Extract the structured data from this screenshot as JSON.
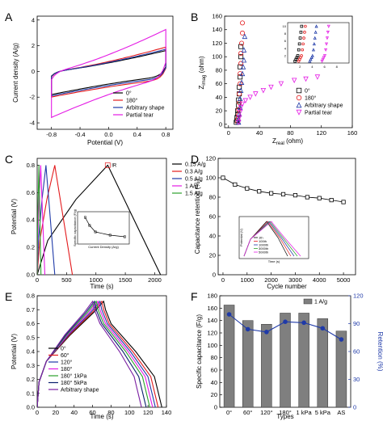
{
  "chart_data": [
    {
      "panel": "A",
      "type": "line",
      "xlabel": "Potential (V)",
      "ylabel": "Current density (A/g)",
      "xlim": [
        -1.0,
        0.9
      ],
      "ylim": [
        -4.5,
        4.3
      ],
      "xticks": [
        -0.8,
        -0.4,
        0.0,
        0.4,
        0.8
      ],
      "xtick_labels": [
        "-0.8",
        "-0.4",
        "0.0",
        "0.4",
        "0.8"
      ],
      "yticks": [
        -4,
        -2,
        0,
        2,
        4
      ],
      "ytick_labels": [
        "-4",
        "-2",
        "0",
        "2",
        "4"
      ],
      "legend_position": "bottom-right",
      "series": [
        {
          "name": "0°",
          "color": "#000000",
          "upper_ends": [
            -0.5,
            1.8
          ],
          "lower_ends": [
            -1.7,
            0.6
          ],
          "corner": 0.6
        },
        {
          "name": "180°",
          "color": "#e31a1c",
          "upper_ends": [
            -0.6,
            2.1
          ],
          "lower_ends": [
            -1.8,
            0.4
          ],
          "corner": 0.7
        },
        {
          "name": "Arbitrary shape",
          "color": "#1f3aa8",
          "upper_ends": [
            -0.55,
            1.9
          ],
          "lower_ends": [
            -1.75,
            0.5
          ],
          "corner": 0.65
        },
        {
          "name": "Partial tear",
          "color": "#e41ae4",
          "upper_ends": [
            -0.9,
            3.8
          ],
          "lower_ends": [
            -3.8,
            1.2
          ],
          "corner": 1.0
        }
      ]
    },
    {
      "panel": "B",
      "type": "scatter",
      "xlabel": "Z",
      "xlabel_sub": "real",
      "xlabel_unit": " (ohm)",
      "ylabel": "Z",
      "ylabel_sub": "imag",
      "ylabel_unit": " (ohm)",
      "xlim": [
        -5,
        160
      ],
      "ylim": [
        -5,
        160
      ],
      "xticks": [
        0,
        40,
        80,
        120,
        160
      ],
      "xtick_labels": [
        "0",
        "40",
        "80",
        "120",
        "160"
      ],
      "yticks": [
        0,
        20,
        40,
        60,
        80,
        100,
        120,
        140,
        160
      ],
      "ytick_labels": [
        "0",
        "20",
        "40",
        "60",
        "80",
        "100",
        "120",
        "140",
        "160"
      ],
      "legend_position": "bottom-right",
      "series": [
        {
          "name": "0°",
          "color": "#000000",
          "marker": "square",
          "points": [
            [
              10,
              3
            ],
            [
              11,
              6
            ],
            [
              11,
              10
            ],
            [
              12,
              15
            ],
            [
              12,
              20
            ],
            [
              13,
              28
            ],
            [
              13,
              36
            ],
            [
              14,
              45
            ],
            [
              14,
              55
            ],
            [
              15,
              70
            ],
            [
              15,
              85
            ],
            [
              16,
              100
            ],
            [
              16,
              115
            ]
          ]
        },
        {
          "name": "180°",
          "color": "#e31a1c",
          "marker": "circle",
          "points": [
            [
              12,
              3
            ],
            [
              12,
              8
            ],
            [
              13,
              14
            ],
            [
              13,
              22
            ],
            [
              14,
              32
            ],
            [
              14,
              45
            ],
            [
              15,
              60
            ],
            [
              15,
              75
            ],
            [
              16,
              90
            ],
            [
              16,
              105
            ],
            [
              17,
              120
            ],
            [
              18,
              135
            ],
            [
              18,
              150
            ]
          ]
        },
        {
          "name": "Arbitrary shape",
          "color": "#1f3aa8",
          "marker": "triangle-up",
          "points": [
            [
              13,
              3
            ],
            [
              13,
              8
            ],
            [
              14,
              15
            ],
            [
              15,
              25
            ],
            [
              15,
              38
            ],
            [
              16,
              50
            ],
            [
              17,
              62
            ],
            [
              18,
              75
            ],
            [
              19,
              85
            ],
            [
              20,
              95
            ],
            [
              20,
              110
            ],
            [
              21,
              130
            ]
          ]
        },
        {
          "name": "Partial tear",
          "color": "#e41ae4",
          "marker": "triangle-down",
          "points": [
            [
              13,
              3
            ],
            [
              14,
              10
            ],
            [
              15,
              18
            ],
            [
              16,
              25
            ],
            [
              18,
              30
            ],
            [
              22,
              35
            ],
            [
              28,
              40
            ],
            [
              35,
              45
            ],
            [
              45,
              50
            ],
            [
              55,
              55
            ],
            [
              68,
              60
            ],
            [
              85,
              65
            ],
            [
              100,
              67
            ],
            [
              115,
              70
            ]
          ]
        }
      ],
      "inset": {
        "xlim": [
          0,
          10
        ],
        "ylim": [
          0,
          11
        ],
        "xticks": [
          2,
          4,
          6,
          8
        ],
        "xtick_labels": [
          "2",
          "4",
          "6",
          "8"
        ],
        "yticks": [
          2,
          4,
          6,
          8,
          10
        ],
        "ytick_labels": [
          "2",
          "4",
          "6",
          "8",
          "10"
        ]
      }
    },
    {
      "panel": "C",
      "type": "line",
      "xlabel": "Time (s)",
      "ylabel": "Potential (V)",
      "xlim": [
        0,
        2200
      ],
      "ylim": [
        0,
        0.85
      ],
      "xticks": [
        0,
        500,
        1000,
        1500,
        2000
      ],
      "xtick_labels": [
        "0",
        "500",
        "1000",
        "1500",
        "2000"
      ],
      "yticks": [
        0.0,
        0.2,
        0.4,
        0.6,
        0.8
      ],
      "ytick_labels": [
        "0.0",
        "0.2",
        "0.4",
        "0.6",
        "0.8"
      ],
      "legend_position": "top-right",
      "annotation": "IR",
      "series": [
        {
          "name": "0.15 A/g",
          "color": "#000000",
          "peak_time": 1200,
          "end_time": 2100
        },
        {
          "name": "0.3 A/g",
          "color": "#e31a1c",
          "peak_time": 300,
          "end_time": 600
        },
        {
          "name": "0.5 A/g",
          "color": "#1f3aa8",
          "peak_time": 150,
          "end_time": 300
        },
        {
          "name": "1 A/g",
          "color": "#e41ae4",
          "peak_time": 60,
          "end_time": 130
        },
        {
          "name": "1.5 A/g",
          "color": "#2ca02c",
          "peak_time": 30,
          "end_time": 65
        }
      ],
      "inset": {
        "xlabel": "Current Density (A/g)",
        "ylabel": "Specific capacitance (F/g)",
        "x": [
          0.15,
          0.3,
          0.5,
          1.0,
          1.5
        ],
        "y": [
          165,
          140,
          120,
          110,
          105
        ]
      }
    },
    {
      "panel": "D",
      "type": "line",
      "xlabel": "Cycle number",
      "ylabel": "Capacitance retention (%)",
      "xlim": [
        -200,
        5500
      ],
      "ylim": [
        0,
        120
      ],
      "xticks": [
        0,
        1000,
        2000,
        3000,
        4000,
        5000
      ],
      "xtick_labels": [
        "0",
        "1000",
        "2000",
        "3000",
        "4000",
        "5000"
      ],
      "yticks": [
        0,
        20,
        40,
        60,
        80,
        100,
        120
      ],
      "ytick_labels": [
        "0",
        "20",
        "40",
        "60",
        "80",
        "100",
        "120"
      ],
      "x": [
        0,
        500,
        1000,
        1500,
        2000,
        2500,
        3000,
        3500,
        4000,
        4500,
        5000
      ],
      "y": [
        100,
        93,
        89,
        86,
        84,
        83,
        82,
        80,
        79,
        77,
        75
      ],
      "inset": {
        "xlabel": "Time (s)",
        "ylabel": "Potential (V)",
        "series_names": [
          "1th",
          "100th",
          "1000th",
          "3000th",
          "5000th"
        ]
      }
    },
    {
      "panel": "E",
      "type": "line",
      "xlabel": "Time (s)",
      "ylabel": "Potential (V)",
      "xlim": [
        0,
        140
      ],
      "ylim": [
        0,
        0.8
      ],
      "xticks": [
        0,
        20,
        40,
        60,
        80,
        100,
        120,
        140
      ],
      "xtick_labels": [
        "0",
        "20",
        "40",
        "60",
        "80",
        "100",
        "120",
        "140"
      ],
      "yticks": [
        0.0,
        0.1,
        0.2,
        0.3,
        0.4,
        0.5,
        0.6,
        0.7,
        0.8
      ],
      "ytick_labels": [
        "0.0",
        "0.1",
        "0.2",
        "0.3",
        "0.4",
        "0.5",
        "0.6",
        "0.7",
        "0.8"
      ],
      "legend_position": "bottom-left",
      "series": [
        {
          "name": "0°",
          "color": "#000000",
          "peak_time": 72,
          "end_time": 135
        },
        {
          "name": "60°",
          "color": "#e31a1c",
          "peak_time": 70,
          "end_time": 131
        },
        {
          "name": "120°",
          "color": "#1f3aa8",
          "peak_time": 68,
          "end_time": 128
        },
        {
          "name": "180°",
          "color": "#e41ae4",
          "peak_time": 66,
          "end_time": 125
        },
        {
          "name": "180° 1kPa",
          "color": "#2ca02c",
          "peak_time": 64,
          "end_time": 122
        },
        {
          "name": "180° 5kPa",
          "color": "#0a1f6e",
          "peak_time": 62,
          "end_time": 118
        },
        {
          "name": "Arbitrary shape",
          "color": "#7a1fa2",
          "peak_time": 60,
          "end_time": 113
        }
      ]
    },
    {
      "panel": "F",
      "type": "bar",
      "xlabel": "Types",
      "ylabel": "Specific capacitance (F/g)",
      "y2label": "Retention (%)",
      "categories": [
        "0°",
        "60°",
        "120°",
        "180°",
        "1 kPa",
        "5 kPa",
        "AS"
      ],
      "ylim": [
        0,
        180
      ],
      "yticks": [
        0,
        20,
        40,
        60,
        80,
        100,
        120,
        140,
        160,
        180
      ],
      "ytick_labels": [
        "0",
        "20",
        "40",
        "60",
        "80",
        "100",
        "120",
        "140",
        "160",
        "180"
      ],
      "y2lim": [
        0,
        120
      ],
      "y2ticks": [
        0,
        30,
        60,
        90,
        120
      ],
      "y2tick_labels": [
        "0",
        "30",
        "60",
        "90",
        "120"
      ],
      "legend_position": "top-right",
      "bar_series": {
        "name": "1 A/g",
        "color": "#7f7f7f",
        "values": [
          165,
          140,
          134,
          152,
          152,
          143,
          123
        ]
      },
      "line_series": {
        "color": "#1f3aa8",
        "values": [
          100,
          84,
          81,
          92,
          91,
          85,
          73
        ]
      }
    }
  ]
}
